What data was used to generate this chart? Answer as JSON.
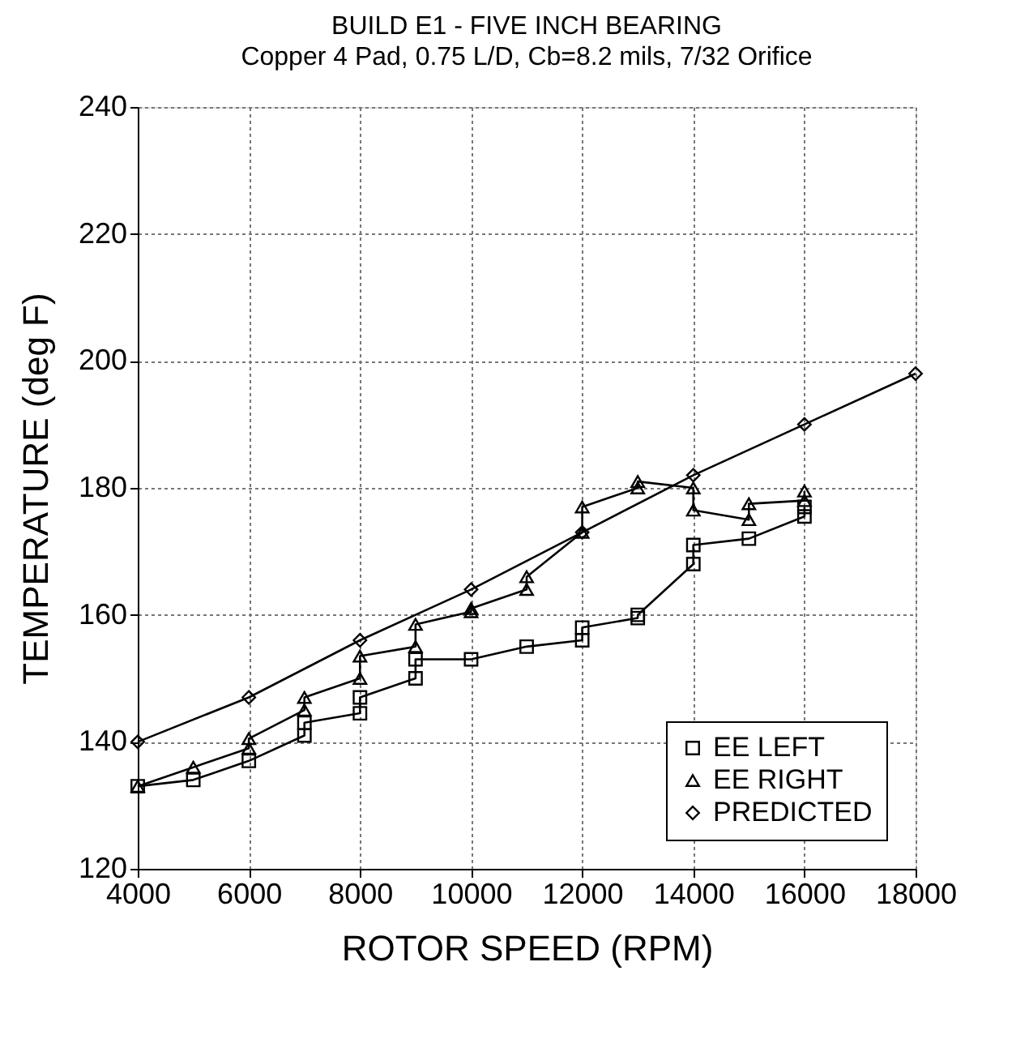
{
  "chart_data": {
    "type": "line",
    "title": "BUILD E1 - FIVE INCH BEARING",
    "subtitle": "Copper 4 Pad, 0.75 L/D, Cb=8.2 mils, 7/32 Orifice",
    "xlabel": "ROTOR SPEED (RPM)",
    "ylabel": "TEMPERATURE (deg F)",
    "xlim": [
      4000,
      18000
    ],
    "xticks": [
      4000,
      6000,
      8000,
      10000,
      12000,
      14000,
      16000,
      18000
    ],
    "ylim": [
      120,
      240
    ],
    "yticks": [
      120,
      140,
      160,
      180,
      200,
      220,
      240
    ],
    "grid": true,
    "legend": "bottom right",
    "line_style": "solid",
    "series": [
      {
        "name": "EE LEFT",
        "color": "#000000",
        "marker": "square",
        "x": [
          4000,
          5000,
          6000,
          7000,
          7000,
          8000,
          8000,
          9000,
          9000,
          10000,
          11000,
          12000,
          12000,
          13000,
          13000,
          14000,
          14000,
          15000,
          16000,
          16000
        ],
        "values": [
          133,
          134,
          137,
          141,
          143,
          144.5,
          147,
          150,
          153,
          153,
          155,
          156,
          158,
          159.5,
          160,
          168,
          171,
          172,
          175.5,
          177
        ]
      },
      {
        "name": "EE RIGHT",
        "color": "#000000",
        "marker": "triangle",
        "x": [
          4000,
          5000,
          6000,
          6000,
          7000,
          7000,
          8000,
          8000,
          9000,
          9000,
          10000,
          10000,
          11000,
          11000,
          12000,
          12000,
          13000,
          13000,
          14000,
          14000,
          15000,
          15000,
          16000,
          16000
        ],
        "values": [
          133,
          136,
          139,
          140.5,
          145,
          147,
          150,
          153.5,
          155,
          158.5,
          160.5,
          161,
          164,
          166,
          173,
          177,
          180,
          181,
          180,
          176.5,
          175,
          177.5,
          178,
          179.5
        ]
      },
      {
        "name": "PREDICTED",
        "color": "#000000",
        "marker": "diamond",
        "x": [
          4000,
          6000,
          8000,
          10000,
          12000,
          14000,
          16000,
          18000
        ],
        "values": [
          140,
          147,
          156,
          164,
          173,
          182,
          190,
          198
        ]
      }
    ]
  }
}
